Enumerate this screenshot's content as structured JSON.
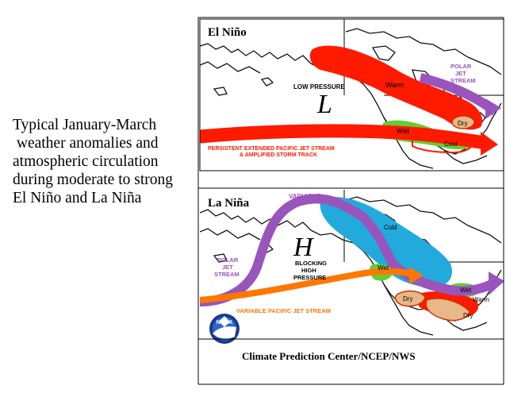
{
  "caption": "Typical January-March\n weather anomalies and\natmospheric circulation\nduring moderate to strong\nEl Niño and La Niña",
  "el_nino": {
    "title": "El Niño",
    "low_pressure": "LOW PRESSURE",
    "low_symbol": "L",
    "warm": "Warm",
    "dry": "Dry",
    "wet": "Wet",
    "cool": "Cool",
    "polar_jet": [
      "POLAR",
      "JET",
      "STREAM"
    ],
    "pacific_jet": [
      "PERSISTENT EXTENDED PACIFIC JET STREAM",
      "& AMPLIFIED STORM TRACK"
    ]
  },
  "la_nina": {
    "title": "La Niña",
    "variable": "VARIABLE",
    "cold": "Cold",
    "high_symbol": "H",
    "blocking": [
      "BLOCKING",
      "HIGH",
      "PRESSURE"
    ],
    "polar_jet": [
      "POLAR",
      "JET",
      "STREAM"
    ],
    "wet_nw": "Wet",
    "wet_ne": "Wet",
    "warm": "Warm",
    "dry_sw": "Dry",
    "dry_se": "Dry",
    "pacific_jet": "VARIABLE PACIFIC JET STREAM"
  },
  "logo": "NOAA",
  "credit": "Climate Prediction Center/NCEP/NWS",
  "colors": {
    "warm": "#ff1a00",
    "wet": "#66cc33",
    "dry": "#e8b888",
    "polar_jet": "#9955bb",
    "cold": "#22aadd",
    "pacific_jet_la_nina": "#ff7700",
    "coast": "#111111"
  }
}
